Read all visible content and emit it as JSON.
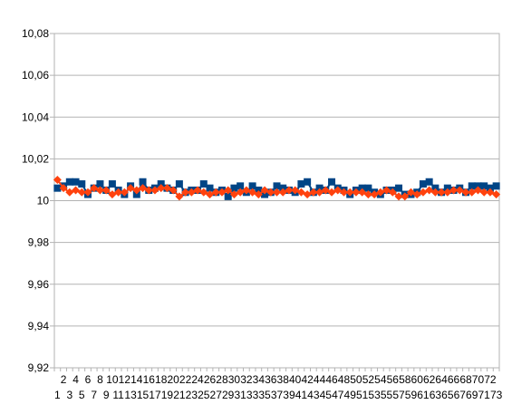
{
  "chart_data": {
    "type": "line",
    "title": "",
    "xlabel": "",
    "ylabel": "",
    "ylim": [
      9.92,
      10.08
    ],
    "y_ticks": [
      "9,92",
      "9,94",
      "9,96",
      "9,98",
      "10",
      "10,02",
      "10,04",
      "10,06",
      "10,08"
    ],
    "y_tick_values": [
      9.92,
      9.94,
      9.96,
      9.98,
      10.0,
      10.02,
      10.04,
      10.06,
      10.08
    ],
    "x": [
      1,
      2,
      3,
      4,
      5,
      6,
      7,
      8,
      9,
      10,
      11,
      12,
      13,
      14,
      15,
      16,
      17,
      18,
      19,
      20,
      21,
      22,
      23,
      24,
      25,
      26,
      27,
      28,
      29,
      30,
      31,
      32,
      33,
      34,
      35,
      36,
      37,
      38,
      39,
      40,
      41,
      42,
      43,
      44,
      45,
      46,
      47,
      48,
      49,
      50,
      51,
      52,
      53,
      54,
      55,
      56,
      57,
      58,
      59,
      60,
      61,
      62,
      63,
      64,
      65,
      66,
      67,
      68,
      69,
      70,
      71,
      72,
      73
    ],
    "x_tick_labels_top": [
      "2",
      "4",
      "6",
      "8",
      "10",
      "12",
      "14",
      "16",
      "18",
      "20",
      "22",
      "24",
      "26",
      "28",
      "30",
      "32",
      "34",
      "36",
      "38",
      "40",
      "42",
      "44",
      "46",
      "48",
      "50",
      "52",
      "54",
      "56",
      "58",
      "60",
      "62",
      "64",
      "66",
      "68",
      "70",
      "72"
    ],
    "x_tick_labels_bottom": [
      "1",
      "3",
      "5",
      "7",
      "9",
      "11",
      "13",
      "15",
      "17",
      "19",
      "21",
      "23",
      "25",
      "27",
      "29",
      "31",
      "33",
      "35",
      "37",
      "39",
      "41",
      "43",
      "45",
      "47",
      "49",
      "51",
      "53",
      "55",
      "57",
      "59",
      "61",
      "63",
      "65",
      "67",
      "69",
      "71",
      "73"
    ],
    "grid": "horizontal",
    "legend": "none",
    "series": [
      {
        "color": "#004586",
        "marker": "square",
        "values": [
          10.006,
          10.007,
          10.009,
          10.009,
          10.008,
          10.003,
          10.006,
          10.008,
          10.005,
          10.008,
          10.005,
          10.003,
          10.007,
          10.003,
          10.009,
          10.005,
          10.006,
          10.008,
          10.006,
          10.005,
          10.008,
          10.004,
          10.005,
          10.005,
          10.008,
          10.006,
          10.004,
          10.005,
          10.002,
          10.006,
          10.007,
          10.004,
          10.007,
          10.005,
          10.003,
          10.004,
          10.007,
          10.006,
          10.005,
          10.004,
          10.008,
          10.009,
          10.004,
          10.006,
          10.005,
          10.009,
          10.006,
          10.005,
          10.003,
          10.005,
          10.006,
          10.006,
          10.004,
          10.003,
          10.005,
          10.005,
          10.006,
          10.003,
          10.003,
          10.004,
          10.008,
          10.009,
          10.006,
          10.004,
          10.006,
          10.005,
          10.006,
          10.004,
          10.007,
          10.007,
          10.007,
          10.006,
          10.007
        ]
      },
      {
        "color": "#ff420e",
        "marker": "diamond",
        "values": [
          10.01,
          10.006,
          10.004,
          10.005,
          10.004,
          10.004,
          10.006,
          10.005,
          10.005,
          10.003,
          10.004,
          10.004,
          10.006,
          10.005,
          10.006,
          10.005,
          10.005,
          10.006,
          10.006,
          10.005,
          10.002,
          10.004,
          10.004,
          10.005,
          10.004,
          10.003,
          10.004,
          10.004,
          10.005,
          10.003,
          10.004,
          10.005,
          10.004,
          10.003,
          10.005,
          10.004,
          10.004,
          10.004,
          10.005,
          10.005,
          10.004,
          10.003,
          10.004,
          10.004,
          10.005,
          10.004,
          10.005,
          10.004,
          10.004,
          10.004,
          10.004,
          10.003,
          10.003,
          10.004,
          10.005,
          10.004,
          10.002,
          10.002,
          10.004,
          10.003,
          10.004,
          10.005,
          10.004,
          10.004,
          10.004,
          10.005,
          10.005,
          10.004,
          10.004,
          10.005,
          10.004,
          10.004,
          10.003
        ]
      }
    ]
  }
}
